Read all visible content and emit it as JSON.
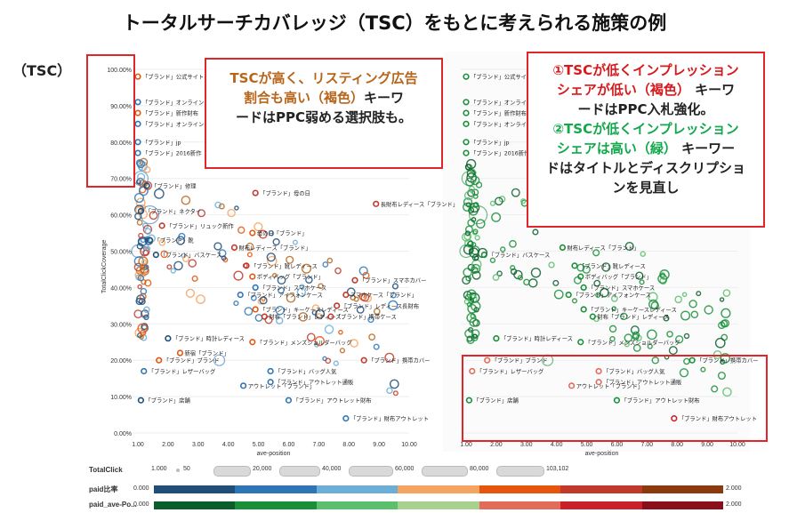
{
  "title": "トータルサーチカバレッジ（TSC）をもとに考えられる施策の例",
  "tsc_label": "（TSC）",
  "callout_left": {
    "line1": "TSCが高く、リスティング広告",
    "line2a": "割合も高い（褐色）",
    "line2b": "キーワ",
    "line3": "ードはPPC弱める選択肢も。"
  },
  "callout_right": {
    "p1a": "①TSCが低くインプレッション",
    "p1b": "シェアが低い（褐色）",
    "p1c": " キーワ",
    "p1d": "ードはPPC入札強化。",
    "p2a": "②TSCが低くインプレッション",
    "p2b": "シェアは高い（緑）",
    "p2c": " キーワー",
    "p2d": "ドはタイトルとディスクリプショ",
    "p2e": "ンを見直し"
  },
  "axes": {
    "ylabel": "TotalClickCoverage",
    "xlabel": "ave-position",
    "yticks": [
      "0.00%",
      "10.00%",
      "20.00%",
      "30.00%",
      "40.00%",
      "50.00%",
      "60.00%",
      "70.00%",
      "80.00%",
      "90.00%",
      "100.00%"
    ],
    "xticks": [
      "1.00",
      "2.00",
      "3.00",
      "4.00",
      "5.00",
      "6.00",
      "7.00",
      "8.00",
      "9.00",
      "10.00"
    ]
  },
  "legend": {
    "totalclick_label": "TotalClick",
    "totalclick_values": [
      "1.000",
      "50",
      "20,000",
      "40,000",
      "60,000",
      "80,000",
      "103,102"
    ],
    "paid_label": "paid比率",
    "paid_min": "0.000",
    "paid_max": "2.000",
    "paid_colors": [
      "#1f4e79",
      "#2e75b6",
      "#6baed6",
      "#f4a460",
      "#e6550d",
      "#c0392b",
      "#8b3a0e"
    ],
    "pos_label": "paid_ave-Po...",
    "pos_min": "0.000",
    "pos_max": "2.000",
    "pos_colors": [
      "#0b5e2b",
      "#1a8f3a",
      "#5bbf6e",
      "#a9d18e",
      "#e36b5a",
      "#c9202a",
      "#8b0f1a"
    ]
  },
  "chart_data": [
    {
      "type": "scatter",
      "name": "left",
      "xlabel": "ave-position",
      "ylabel": "TotalClickCoverage",
      "xlim": [
        1,
        10
      ],
      "ylim": [
        0,
        100
      ],
      "labeled_points": [
        {
          "label": "「ブランド」公式サイト",
          "x": 1.0,
          "y": 98,
          "color": "#e6550d"
        },
        {
          "label": "「ブランド」オンライン",
          "x": 1.0,
          "y": 91,
          "color": "#2e75b6"
        },
        {
          "label": "「ブランド」新作財布",
          "x": 1.0,
          "y": 88,
          "color": "#e6550d"
        },
        {
          "label": "「ブランド」オンラインストア",
          "x": 1.0,
          "y": 85,
          "color": "#2e75b6"
        },
        {
          "label": "「ブランド」jp",
          "x": 1.0,
          "y": 80,
          "color": "#2e75b6"
        },
        {
          "label": "「ブランド」2016新作",
          "x": 1.0,
          "y": 77,
          "color": "#2e75b6"
        },
        {
          "label": "「ブランド」修理",
          "x": 1.3,
          "y": 68,
          "color": "#1f4e79"
        },
        {
          "label": "「ブランド」母の日",
          "x": 4.9,
          "y": 66,
          "color": "#c0392b"
        },
        {
          "label": "長財布レディース「ブランド」",
          "x": 8.9,
          "y": 63,
          "color": "#c0392b"
        },
        {
          "label": "「ブランド」ネクタイ",
          "x": 1.1,
          "y": 61,
          "color": "#1f4e79"
        },
        {
          "label": "「ブランド」リュック新作",
          "x": 1.8,
          "y": 57,
          "color": "#c0392b"
        },
        {
          "label": "母の日「ブランド」",
          "x": 4.8,
          "y": 55,
          "color": "#e6550d"
        },
        {
          "label": "「ブランド」靴",
          "x": 1.4,
          "y": 53,
          "color": "#1f4e79"
        },
        {
          "label": "財布レディース「ブランド」",
          "x": 4.2,
          "y": 51,
          "color": "#c0392b"
        },
        {
          "label": "「ブランド」バスケース",
          "x": 1.6,
          "y": 49,
          "color": "#1f4e79"
        },
        {
          "label": "「ブランド」靴レディース",
          "x": 4.6,
          "y": 46,
          "color": "#c0392b"
        },
        {
          "label": "ボディバッグ「ブランド」",
          "x": 4.8,
          "y": 43,
          "color": "#e6550d"
        },
        {
          "label": "「ブランド」スマホカバー",
          "x": 8.2,
          "y": 42,
          "color": "#c0392b"
        },
        {
          "label": "「ブランド」スマホケース",
          "x": 4.9,
          "y": 40,
          "color": "#2e75b6"
        },
        {
          "label": "「ブランド」アイフォンケース",
          "x": 4.4,
          "y": 38,
          "color": "#2e75b6"
        },
        {
          "label": "スマホケース「ブランド」",
          "x": 7.9,
          "y": 38,
          "color": "#c0392b"
        },
        {
          "label": "「ブランド」レディース長財布",
          "x": 7.6,
          "y": 35,
          "color": "#c0392b"
        },
        {
          "label": "「ブランド」キーケースレディース",
          "x": 4.9,
          "y": 34,
          "color": "#e6550d"
        },
        {
          "label": "財布「ブランド」レディース",
          "x": 5.2,
          "y": 32,
          "color": "#c0392b"
        },
        {
          "label": "「ブランド」携帯ケース",
          "x": 7.4,
          "y": 32,
          "color": "#c0392b"
        },
        {
          "label": "「ブランド」時計レディース",
          "x": 2.0,
          "y": 26,
          "color": "#1f4e79"
        },
        {
          "label": "「ブランド」メンズショルダーバッグ",
          "x": 4.8,
          "y": 25,
          "color": "#e6550d"
        },
        {
          "label": "新宿「ブランド」",
          "x": 2.4,
          "y": 22,
          "color": "#e6550d"
        },
        {
          "label": "「ブランド」ブランド",
          "x": 1.7,
          "y": 20,
          "color": "#e6550d"
        },
        {
          "label": "「ブランド」携帯カバー",
          "x": 8.5,
          "y": 20,
          "color": "#c0392b"
        },
        {
          "label": "「ブランド」レザーバッグ",
          "x": 1.2,
          "y": 17,
          "color": "#2e75b6"
        },
        {
          "label": "「ブランド」バッグ人気",
          "x": 5.4,
          "y": 17,
          "color": "#2e75b6"
        },
        {
          "label": "「ブランド」アウトレット通販",
          "x": 5.4,
          "y": 14,
          "color": "#2e75b6"
        },
        {
          "label": "アウトレット「ブランド」",
          "x": 4.5,
          "y": 13,
          "color": "#2e75b6"
        },
        {
          "label": "「ブランド」店舗",
          "x": 1.1,
          "y": 9,
          "color": "#1f4e79"
        },
        {
          "label": "「ブランド」アウトレット財布",
          "x": 6.0,
          "y": 9,
          "color": "#2e75b6"
        },
        {
          "label": "「ブランド」財布アウトレット",
          "x": 7.9,
          "y": 4,
          "color": "#2e75b6"
        }
      ]
    },
    {
      "type": "scatter",
      "name": "right",
      "xlabel": "ave-position",
      "ylabel": "TotalClickCoverage",
      "xlim": [
        1,
        10
      ],
      "ylim": [
        0,
        100
      ],
      "labeled_points": [
        {
          "label": "「ブランド」公式サイト",
          "x": 1.0,
          "y": 98,
          "color": "#1a8f3a"
        },
        {
          "label": "「ブランド」オンライン",
          "x": 1.0,
          "y": 91,
          "color": "#1a8f3a"
        },
        {
          "label": "「ブランド」新作財布",
          "x": 1.0,
          "y": 88,
          "color": "#1a8f3a"
        },
        {
          "label": "「ブランド」オンラインストア",
          "x": 1.0,
          "y": 85,
          "color": "#1a8f3a"
        },
        {
          "label": "「ブランド」jp",
          "x": 1.0,
          "y": 80,
          "color": "#1a8f3a"
        },
        {
          "label": "「ブランド」2016新作",
          "x": 1.0,
          "y": 77,
          "color": "#1a8f3a"
        },
        {
          "label": "「ブランド」バスケース",
          "x": 1.6,
          "y": 49,
          "color": "#1a8f3a"
        },
        {
          "label": "財布レディース「ブランド」",
          "x": 4.2,
          "y": 51,
          "color": "#1a8f3a"
        },
        {
          "label": "「ブランド」靴レディース",
          "x": 4.6,
          "y": 46,
          "color": "#1a8f3a"
        },
        {
          "label": "ボディバッグ「ブランド」",
          "x": 4.8,
          "y": 43,
          "color": "#1a8f3a"
        },
        {
          "label": "「ブランド」スマホケース",
          "x": 4.9,
          "y": 40,
          "color": "#1a8f3a"
        },
        {
          "label": "「ブランド」アイフォンケース",
          "x": 4.4,
          "y": 38,
          "color": "#1a8f3a"
        },
        {
          "label": "「ブランド」キーケースレディース",
          "x": 4.9,
          "y": 34,
          "color": "#1a8f3a"
        },
        {
          "label": "財布「ブランド」レディース",
          "x": 5.2,
          "y": 32,
          "color": "#1a8f3a"
        },
        {
          "label": "「ブランド」時計レディース",
          "x": 2.0,
          "y": 26,
          "color": "#1a8f3a"
        },
        {
          "label": "「ブランド」メンズショルダーバッグ",
          "x": 4.8,
          "y": 25,
          "color": "#1a8f3a"
        },
        {
          "label": "「ブランド」ブランド",
          "x": 1.7,
          "y": 20,
          "color": "#e36b5a"
        },
        {
          "label": "「ブランド」携帯カバー",
          "x": 8.5,
          "y": 20,
          "color": "#1a8f3a"
        },
        {
          "label": "「ブランド」レザーバッグ",
          "x": 1.2,
          "y": 17,
          "color": "#e36b5a"
        },
        {
          "label": "「ブランド」バッグ人気",
          "x": 5.4,
          "y": 17,
          "color": "#e36b5a"
        },
        {
          "label": "「ブランド」アウトレット通販",
          "x": 5.4,
          "y": 14,
          "color": "#e36b5a"
        },
        {
          "label": "アウトレット「ブランド」",
          "x": 4.5,
          "y": 13,
          "color": "#e36b5a"
        },
        {
          "label": "「ブランド」店舗",
          "x": 1.1,
          "y": 9,
          "color": "#1a8f3a"
        },
        {
          "label": "「ブランド」アウトレット財布",
          "x": 6.0,
          "y": 9,
          "color": "#1a8f3a"
        },
        {
          "label": "「ブランド」財布アウトレット",
          "x": 7.9,
          "y": 4,
          "color": "#c9202a"
        }
      ]
    }
  ]
}
